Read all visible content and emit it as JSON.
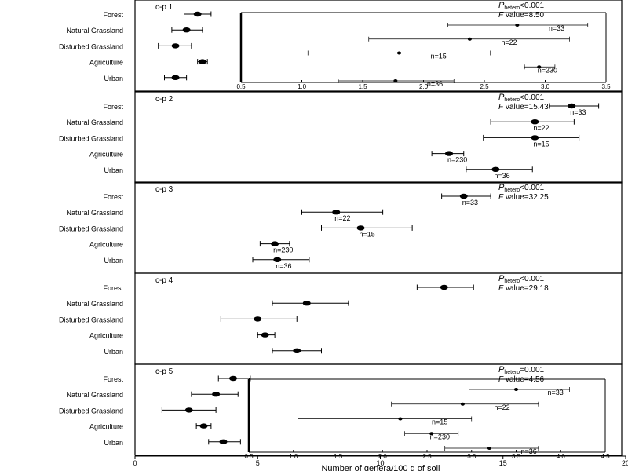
{
  "chart_data": {
    "type": "scatter",
    "xlabel": "Number of genera/100 g of soil",
    "xlim": [
      0,
      20
    ],
    "xticks": [
      0,
      5,
      10,
      15,
      20
    ],
    "categories": [
      "Forest",
      "Natural Grassland",
      "Disturbed Grassland",
      "Agriculture",
      "Urban"
    ],
    "panels": [
      {
        "name": "c-p 1",
        "stat_p": "<0.001",
        "stat_label": "F value=",
        "stat_value": "8.50",
        "points": [
          {
            "category": "Forest",
            "mean": 2.55,
            "lo": 2.0,
            "hi": 3.1
          },
          {
            "category": "Natural Grassland",
            "mean": 2.1,
            "lo": 1.5,
            "hi": 2.75
          },
          {
            "category": "Disturbed Grassland",
            "mean": 1.65,
            "lo": 0.95,
            "hi": 2.3
          },
          {
            "category": "Agriculture",
            "mean": 2.75,
            "lo": 2.55,
            "hi": 2.95
          },
          {
            "category": "Urban",
            "mean": 1.65,
            "lo": 1.2,
            "hi": 2.1
          }
        ],
        "inset": {
          "xlim": [
            0.5,
            3.5
          ],
          "xticks": [
            0.5,
            1.0,
            1.5,
            2.0,
            2.5,
            3.0,
            3.5
          ],
          "xticklabels": [
            "0.5",
            "1.0",
            "1.5",
            "2.0",
            "2.5",
            "3.0",
            "3.5"
          ],
          "points": [
            {
              "category": "Forest",
              "mean": 2.77,
              "lo": 2.2,
              "hi": 3.35,
              "n": "n=33"
            },
            {
              "category": "Natural Grassland",
              "mean": 2.38,
              "lo": 1.55,
              "hi": 3.2,
              "n": "n=22"
            },
            {
              "category": "Disturbed Grassland",
              "mean": 1.8,
              "lo": 1.05,
              "hi": 2.55,
              "n": "n=15"
            },
            {
              "category": "Agriculture",
              "mean": 2.95,
              "lo": 2.83,
              "hi": 3.08,
              "n": "n=230"
            },
            {
              "category": "Urban",
              "mean": 1.77,
              "lo": 1.3,
              "hi": 2.25,
              "n": "n=36"
            }
          ]
        }
      },
      {
        "name": "c-p 2",
        "stat_p": "<0.001",
        "stat_label": "F value=",
        "stat_value": "15.43",
        "points": [
          {
            "category": "Forest",
            "mean": 17.8,
            "lo": 16.9,
            "hi": 18.9,
            "n": "n=33"
          },
          {
            "category": "Natural Grassland",
            "mean": 16.3,
            "lo": 14.5,
            "hi": 17.9,
            "n": "n=22"
          },
          {
            "category": "Disturbed Grassland",
            "mean": 16.3,
            "lo": 14.2,
            "hi": 18.1,
            "n": "n=15"
          },
          {
            "category": "Agriculture",
            "mean": 12.8,
            "lo": 12.1,
            "hi": 13.4,
            "n": "n=230"
          },
          {
            "category": "Urban",
            "mean": 14.7,
            "lo": 13.5,
            "hi": 16.2,
            "n": "n=36"
          }
        ]
      },
      {
        "name": "c-p 3",
        "stat_p": "<0.001",
        "stat_label": "F value=",
        "stat_value": "32.25",
        "points": [
          {
            "category": "Forest",
            "mean": 13.4,
            "lo": 12.5,
            "hi": 14.5,
            "n": "n=33"
          },
          {
            "category": "Natural Grassland",
            "mean": 8.2,
            "lo": 6.8,
            "hi": 10.1,
            "n": "n=22"
          },
          {
            "category": "Disturbed Grassland",
            "mean": 9.2,
            "lo": 7.6,
            "hi": 11.3,
            "n": "n=15"
          },
          {
            "category": "Agriculture",
            "mean": 5.7,
            "lo": 5.1,
            "hi": 6.3,
            "n": "n=230"
          },
          {
            "category": "Urban",
            "mean": 5.8,
            "lo": 4.8,
            "hi": 7.1,
            "n": "n=36"
          }
        ]
      },
      {
        "name": "c-p 4",
        "stat_p": "<0.001",
        "stat_label": "F value=",
        "stat_value": "29.18",
        "points": [
          {
            "category": "Forest",
            "mean": 12.6,
            "lo": 11.5,
            "hi": 13.8
          },
          {
            "category": "Natural Grassland",
            "mean": 7.0,
            "lo": 5.6,
            "hi": 8.7
          },
          {
            "category": "Disturbed Grassland",
            "mean": 5.0,
            "lo": 3.5,
            "hi": 6.6
          },
          {
            "category": "Agriculture",
            "mean": 5.3,
            "lo": 5.0,
            "hi": 5.7
          },
          {
            "category": "Urban",
            "mean": 6.6,
            "lo": 5.6,
            "hi": 7.6
          }
        ]
      },
      {
        "name": "c-p 5",
        "stat_p": "=0.001",
        "stat_label": "F value=",
        "stat_value": "4.56",
        "points": [
          {
            "category": "Forest",
            "mean": 4.0,
            "lo": 3.4,
            "hi": 4.7
          },
          {
            "category": "Natural Grassland",
            "mean": 3.3,
            "lo": 2.3,
            "hi": 4.2
          },
          {
            "category": "Disturbed Grassland",
            "mean": 2.2,
            "lo": 1.1,
            "hi": 3.3
          },
          {
            "category": "Agriculture",
            "mean": 2.8,
            "lo": 2.5,
            "hi": 3.1
          },
          {
            "category": "Urban",
            "mean": 3.6,
            "lo": 3.0,
            "hi": 4.3
          }
        ],
        "inset": {
          "xlim": [
            0.5,
            4.5
          ],
          "xticks": [
            0.5,
            1.0,
            1.5,
            2.0,
            2.5,
            3.0,
            3.5,
            4.0,
            4.5
          ],
          "xticklabels": [
            "0.5",
            "1.0",
            "1.5",
            "2.0",
            "2.5",
            "3.0",
            "3.5",
            "4.0",
            "4.5"
          ],
          "points": [
            {
              "category": "Forest",
              "mean": 3.5,
              "lo": 2.97,
              "hi": 4.1,
              "n": "n=33"
            },
            {
              "category": "Natural Grassland",
              "mean": 2.9,
              "lo": 2.1,
              "hi": 3.75,
              "n": "n=22"
            },
            {
              "category": "Disturbed Grassland",
              "mean": 2.2,
              "lo": 1.05,
              "hi": 3.0,
              "n": "n=15"
            },
            {
              "category": "Agriculture",
              "mean": 2.55,
              "lo": 2.25,
              "hi": 2.85,
              "n": "n=230"
            },
            {
              "category": "Urban",
              "mean": 3.2,
              "lo": 2.7,
              "hi": 3.75,
              "n": "n=36"
            }
          ]
        }
      }
    ]
  }
}
